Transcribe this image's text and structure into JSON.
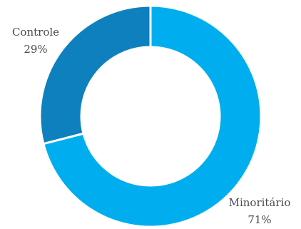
{
  "chart_data": {
    "type": "pie",
    "variant": "donut",
    "title": "",
    "slices": [
      {
        "name": "Minoritário",
        "value": 71,
        "percent_label": "71%",
        "color": "#00aeef"
      },
      {
        "name": "Controle",
        "value": 29,
        "percent_label": "29%",
        "color": "#0e80bd"
      }
    ],
    "start_angle_deg": 0,
    "direction": "clockwise",
    "legend": "none"
  }
}
